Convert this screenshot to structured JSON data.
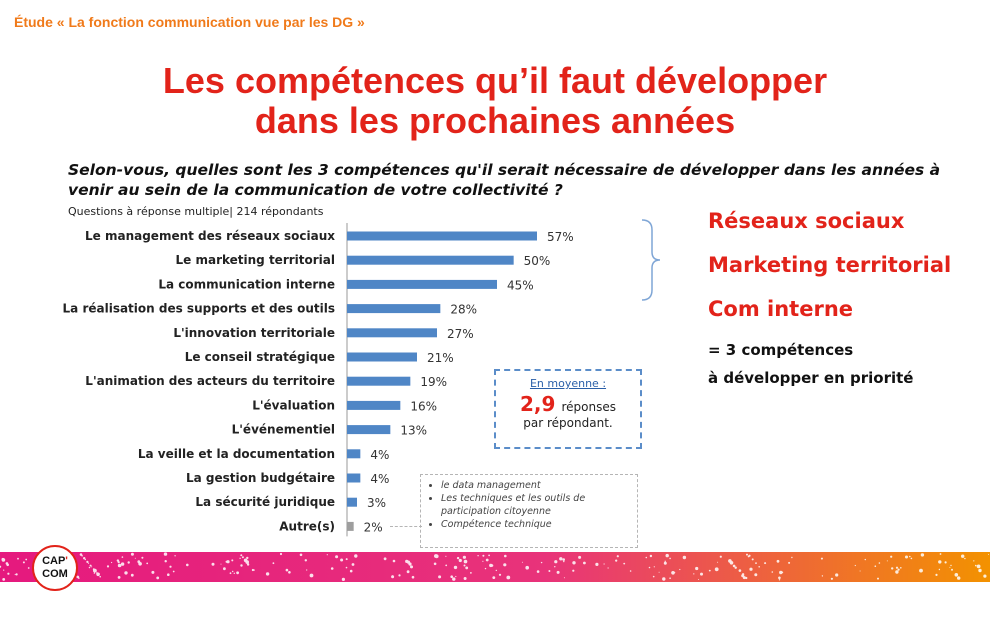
{
  "header": {
    "study": "Étude « La fonction communication vue par les DG »",
    "title_line1": "Les compétences qu’il faut développer",
    "title_line2": "dans les prochaines années"
  },
  "question": "Selon-vous, quelles sont les 3 compétences qu'il serait nécessaire de développer dans les années à venir au sein de la communication de votre collectivité ?",
  "subnote": "Questions à réponse multiple| 214 répondants",
  "chart_data": {
    "type": "bar",
    "orientation": "horizontal",
    "categories": [
      "Le management des réseaux sociaux",
      "Le marketing territorial",
      "La communication interne",
      "La réalisation des supports et des outils",
      "L'innovation territoriale",
      "Le conseil stratégique",
      "L'animation des acteurs du territoire",
      "L'évaluation",
      "L'événementiel",
      "La veille et la documentation",
      "La gestion budgétaire",
      "La sécurité juridique",
      "Autre(s)"
    ],
    "values": [
      57,
      50,
      45,
      28,
      27,
      21,
      19,
      16,
      13,
      4,
      4,
      3,
      2
    ],
    "value_labels": [
      "57%",
      "50%",
      "45%",
      "28%",
      "27%",
      "21%",
      "19%",
      "16%",
      "13%",
      "4%",
      "4%",
      "3%",
      "2%"
    ],
    "unit": "%",
    "xlim": [
      0,
      60
    ],
    "grid": false,
    "bar_color": "#4f86c6",
    "other_bar_color": "#9e9e9e"
  },
  "highlights": {
    "items": [
      "Réseaux sociaux",
      "Marketing territorial",
      "Com interne"
    ],
    "summary_line1": "= 3 compétences",
    "summary_line2": "à développer en priorité"
  },
  "average": {
    "title": "En moyenne :",
    "number": "2,9",
    "text1": "réponses",
    "text2": "par répondant."
  },
  "other_details": [
    "le data management",
    "Les techniques et les outils de participation citoyenne",
    "Compétence technique"
  ],
  "logo": {
    "line1": "CAP",
    "accent": "'",
    "line2": "COM"
  },
  "colors": {
    "title_red": "#e2231a",
    "study_orange": "#f07a1a",
    "footer_magenta": "#e5197e",
    "footer_orange": "#f39200"
  }
}
